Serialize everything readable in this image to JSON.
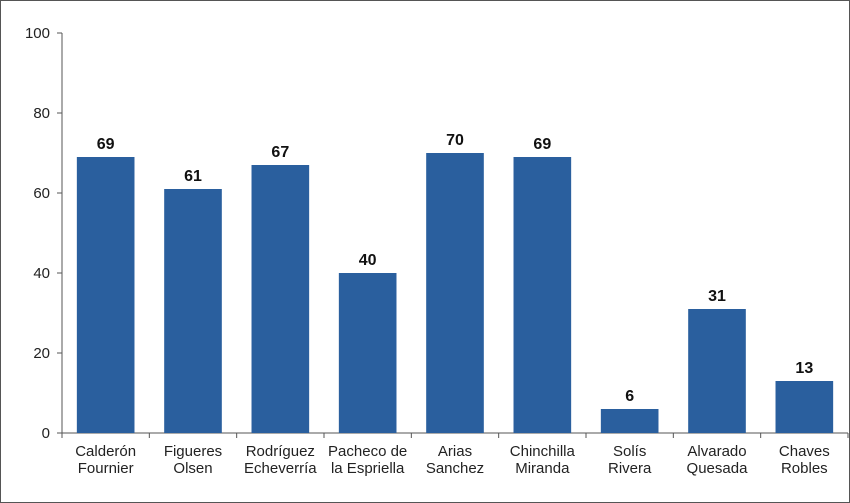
{
  "colors": {
    "bar": "#2A5F9E"
  },
  "chart_data": {
    "type": "bar",
    "title": "",
    "xlabel": "",
    "ylabel": "",
    "ylim": [
      0,
      100
    ],
    "yticks": [
      0,
      20,
      40,
      60,
      80,
      100
    ],
    "grid": false,
    "legend": "none",
    "categories": [
      [
        "Calderón",
        "Fournier"
      ],
      [
        "Figueres",
        "Olsen"
      ],
      [
        "Rodríguez",
        "Echeverría"
      ],
      [
        "Pacheco de",
        "la Espriella"
      ],
      [
        "Arias",
        "Sanchez"
      ],
      [
        "Chinchilla",
        "Miranda"
      ],
      [
        "Solís",
        "Rivera"
      ],
      [
        "Alvarado",
        "Quesada"
      ],
      [
        "Chaves",
        "Robles"
      ]
    ],
    "values": [
      69,
      61,
      67,
      40,
      70,
      69,
      6,
      31,
      13
    ]
  }
}
